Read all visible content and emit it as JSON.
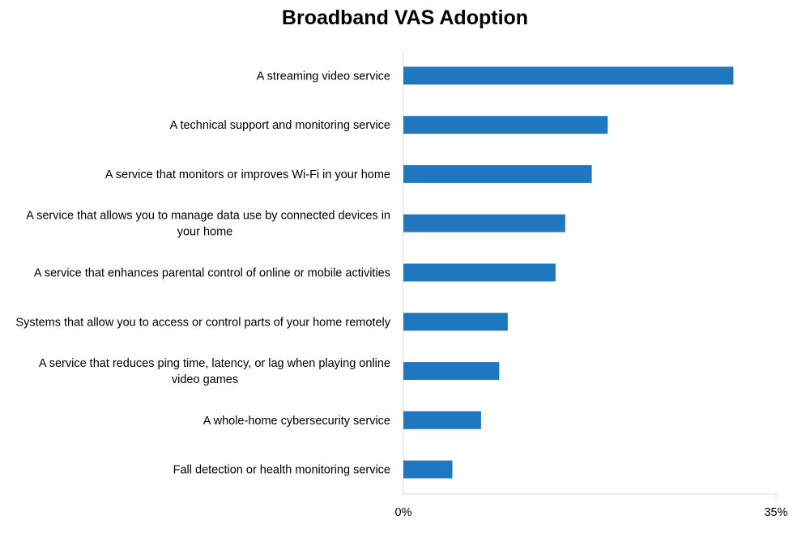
{
  "chart_data": {
    "type": "bar",
    "orientation": "horizontal",
    "title": "Broadband VAS Adoption",
    "xlabel": "",
    "ylabel": "",
    "categories": [
      "A streaming video service",
      "A technical support and monitoring service",
      "A service that monitors or improves Wi-Fi in your home",
      "A service that allows you to manage data use by connected devices in your home",
      "A service that enhances parental control of online or mobile activities",
      "Systems that allow you to access or control parts of your home remotely",
      "A service that reduces ping time, latency, or lag when playing online video games",
      "A whole-home cybersecurity service",
      "Fall detection or health monitoring service"
    ],
    "category_lines": [
      [
        "A streaming video service"
      ],
      [
        "A technical support and monitoring service"
      ],
      [
        "A service that monitors or improves Wi-Fi in your home"
      ],
      [
        "A service that allows you to manage data use by connected devices in",
        "your home"
      ],
      [
        "A service that enhances parental control of online or mobile activities"
      ],
      [
        "Systems that allow you to access or control parts of your home remotely"
      ],
      [
        "A service that reduces ping time, latency, or lag when playing online",
        "video games"
      ],
      [
        "A whole-home cybersecurity service"
      ],
      [
        "Fall detection or health monitoring service"
      ]
    ],
    "values": [
      31,
      19.2,
      17.7,
      15.2,
      14.3,
      9.8,
      9.0,
      7.3,
      4.6
    ],
    "unit": "%",
    "xlim": [
      0,
      35
    ],
    "xticks": [
      "0%",
      "35%"
    ],
    "grid": false,
    "legend": "none",
    "bar_color": "#1f77c0"
  }
}
